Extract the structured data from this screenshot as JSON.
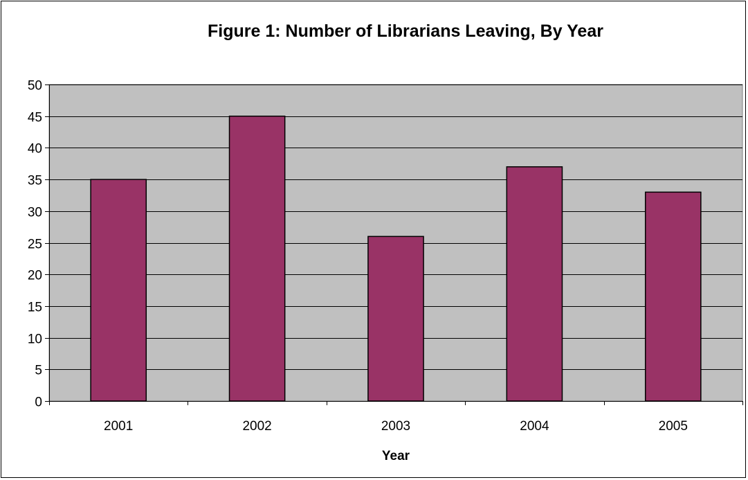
{
  "chart_data": {
    "type": "bar",
    "title": "Figure 1: Number of Librarians Leaving, By Year",
    "xlabel": "Year",
    "ylabel": "",
    "categories": [
      "2001",
      "2002",
      "2003",
      "2004",
      "2005"
    ],
    "values": [
      35,
      45,
      26,
      37,
      33
    ],
    "ylim": [
      0,
      50
    ],
    "yticks": [
      "0",
      "5",
      "10",
      "15",
      "20",
      "25",
      "30",
      "35",
      "40",
      "45",
      "50"
    ],
    "grid": true,
    "legend": "none",
    "colors": {
      "bar": "#993366",
      "plot_background": "#C0C0C0",
      "gridline": "#000000"
    }
  }
}
